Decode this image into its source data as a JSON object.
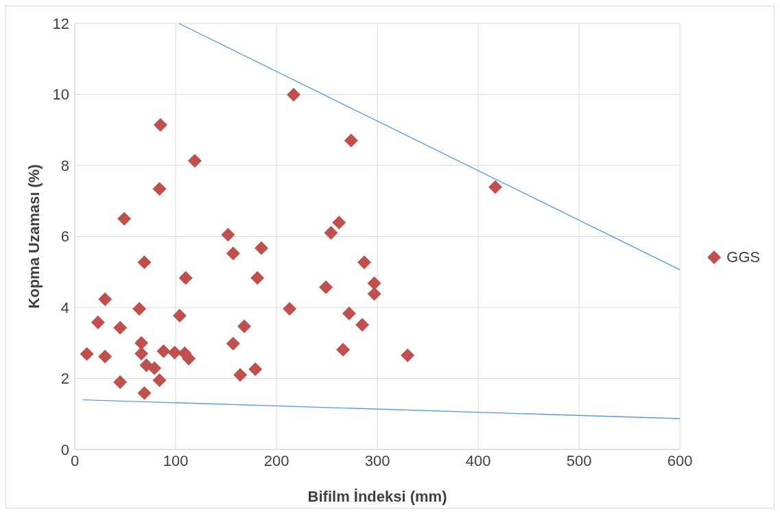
{
  "chart_data": {
    "type": "scatter",
    "xlabel": "Bifilm İndeksi (mm)",
    "ylabel": "Kopma Uzaması (%)",
    "xlim": [
      0,
      600
    ],
    "xticks": [
      0,
      100,
      200,
      300,
      400,
      500,
      600
    ],
    "ylim": [
      0,
      12
    ],
    "yticks": [
      0,
      2,
      4,
      6,
      8,
      10,
      12
    ],
    "grid": true,
    "legend": "right",
    "series": [
      {
        "name": "GGS",
        "color": "#c0504d",
        "marker": "diamond",
        "x": [
          12,
          23,
          30,
          30,
          45,
          45,
          49,
          64,
          66,
          66,
          69,
          69,
          71,
          79,
          85,
          84,
          84,
          88,
          99,
          104,
          110,
          109,
          113,
          119,
          152,
          157,
          157,
          164,
          168,
          181,
          179,
          185,
          213,
          217,
          249,
          254,
          262,
          266,
          272,
          274,
          285,
          287,
          297,
          297,
          330,
          417
        ],
        "values": [
          2.69,
          3.58,
          4.23,
          2.62,
          1.9,
          3.43,
          6.5,
          3.96,
          3.0,
          2.7,
          5.27,
          1.59,
          2.37,
          2.29,
          9.14,
          7.34,
          1.95,
          2.77,
          2.73,
          3.77,
          4.83,
          2.71,
          2.56,
          8.13,
          6.05,
          5.52,
          2.98,
          2.1,
          3.47,
          4.83,
          2.26,
          5.67,
          3.96,
          9.99,
          4.57,
          6.1,
          6.39,
          2.81,
          3.83,
          8.7,
          3.51,
          5.27,
          4.68,
          4.38,
          2.65,
          7.39
        ]
      },
      {
        "type": "line",
        "color": "#5b9bd5",
        "marker": "none",
        "x": [
          103,
          600
        ],
        "values": [
          12,
          5.06
        ]
      },
      {
        "type": "line",
        "color": "#5b9bd5",
        "marker": "none",
        "x": [
          8,
          600
        ],
        "values": [
          1.4,
          0.87
        ]
      }
    ]
  }
}
